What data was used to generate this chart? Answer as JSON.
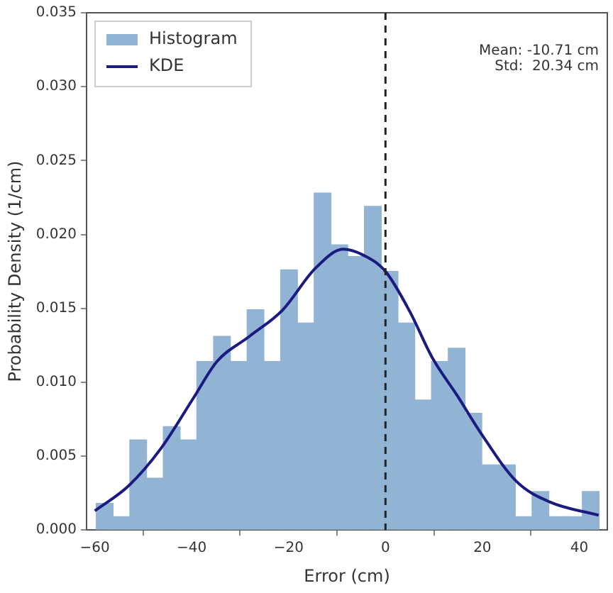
{
  "chart_data": {
    "type": "histogram",
    "xlabel": "Error (cm)",
    "ylabel": "Probability Density (1/cm)",
    "bins": [
      -59.7,
      -56.24,
      -52.78,
      -49.32,
      -45.86,
      -42.4,
      -38.94,
      -35.48,
      -32.02,
      -28.56,
      -25.1,
      -21.64,
      -18.18,
      -14.72,
      -11.26,
      -7.8,
      -4.34,
      -0.88,
      2.58,
      6.04,
      9.5,
      12.96,
      16.42,
      19.88,
      23.34,
      26.8,
      30.26,
      33.72,
      37.18,
      40.64,
      44.1
    ],
    "series": [
      {
        "name": "Histogram",
        "color": "#92b4d4",
        "values": [
          0.0018,
          0.0009,
          0.0061,
          0.0035,
          0.007,
          0.0061,
          0.0114,
          0.0131,
          0.0114,
          0.0149,
          0.0114,
          0.0176,
          0.014,
          0.0228,
          0.0193,
          0.0185,
          0.0219,
          0.0175,
          0.014,
          0.0088,
          0.0114,
          0.0123,
          0.0079,
          0.0044,
          0.0044,
          0.0009,
          0.0026,
          0.0009,
          0.0009,
          0.0026
        ]
      },
      {
        "name": "KDE",
        "type": "line",
        "color": "#1a1a80",
        "x": [
          -60,
          -53,
          -46.4,
          -39.7,
          -34.8,
          -28.1,
          -21.2,
          -14.5,
          -8.7,
          -4,
          0,
          5,
          9.6,
          15,
          19.4,
          27,
          33.9,
          44
        ],
        "values": [
          0.0013,
          0.003,
          0.0055,
          0.0089,
          0.0114,
          0.0131,
          0.0149,
          0.0177,
          0.019,
          0.0185,
          0.0175,
          0.0148,
          0.0117,
          0.009,
          0.0067,
          0.0033,
          0.0019,
          0.001
        ]
      }
    ],
    "xlim": [
      -61.7,
      45.8
    ],
    "xticks": [
      {
        "value": -60,
        "label": "−60"
      },
      {
        "value": -40,
        "label": "−40"
      },
      {
        "value": -20,
        "label": "−20"
      },
      0,
      20,
      40
    ],
    "ylim": [
      0,
      0.035
    ],
    "yticks": [
      {
        "value": 0,
        "label": "0.000"
      },
      {
        "value": 0.005,
        "label": "0.005"
      },
      {
        "value": 0.01,
        "label": "0.010"
      },
      {
        "value": 0.015,
        "label": "0.015"
      },
      {
        "value": 0.02,
        "label": "0.020"
      },
      {
        "value": 0.025,
        "label": "0.025"
      },
      {
        "value": 0.03,
        "label": "0.030"
      },
      {
        "value": 0.035,
        "label": "0.035"
      }
    ],
    "ref_lines": [
      {
        "axis": "x",
        "value": 0,
        "color": "#222222",
        "line_style": "dashed"
      }
    ],
    "annotations": [
      "Mean: -10.71 cm",
      "Std:  20.34 cm"
    ],
    "legend": "top left",
    "grid": false
  }
}
